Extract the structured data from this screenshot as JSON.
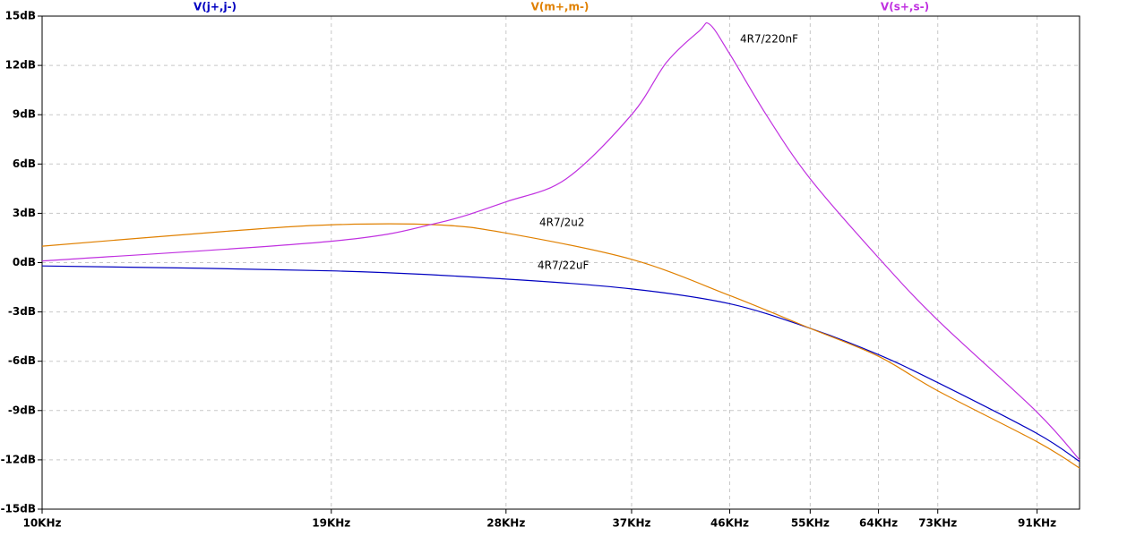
{
  "chart_data": {
    "type": "line",
    "x_log": true,
    "grid": true,
    "xlim": [
      10000,
      100000
    ],
    "ylim": [
      -15,
      15
    ],
    "xticks": [
      {
        "value": 10000,
        "label": "10KHz"
      },
      {
        "value": 19000,
        "label": "19KHz"
      },
      {
        "value": 28000,
        "label": "28KHz"
      },
      {
        "value": 37000,
        "label": "37KHz"
      },
      {
        "value": 46000,
        "label": "46KHz"
      },
      {
        "value": 55000,
        "label": "55KHz"
      },
      {
        "value": 64000,
        "label": "64KHz"
      },
      {
        "value": 73000,
        "label": "73KHz"
      },
      {
        "value": 91000,
        "label": "91KHz"
      }
    ],
    "yticks": [
      {
        "value": 15,
        "label": "15dB"
      },
      {
        "value": 12,
        "label": "12dB"
      },
      {
        "value": 9,
        "label": "9dB"
      },
      {
        "value": 6,
        "label": "6dB"
      },
      {
        "value": 3,
        "label": "3dB"
      },
      {
        "value": 0,
        "label": "0dB"
      },
      {
        "value": -3,
        "label": "-3dB"
      },
      {
        "value": -6,
        "label": "-6dB"
      },
      {
        "value": -9,
        "label": "-9dB"
      },
      {
        "value": -12,
        "label": "-12dB"
      },
      {
        "value": -15,
        "label": "-15dB"
      }
    ],
    "series": [
      {
        "name": "V(j+,j-)",
        "color": "#0000c0",
        "x": [
          10000,
          19000,
          28000,
          37000,
          46000,
          55000,
          64000,
          73000,
          91000,
          100000
        ],
        "values": [
          -0.2,
          -0.5,
          -1.0,
          -1.6,
          -2.5,
          -4.0,
          -5.6,
          -7.3,
          -10.4,
          -12.1
        ]
      },
      {
        "name": "V(m+,m-)",
        "color": "#e08000",
        "x": [
          10000,
          15000,
          19000,
          24000,
          28000,
          37000,
          46000,
          55000,
          64000,
          73000,
          91000,
          100000
        ],
        "values": [
          1.0,
          1.9,
          2.3,
          2.3,
          1.8,
          0.2,
          -2.0,
          -4.0,
          -5.7,
          -7.8,
          -10.9,
          -12.5
        ]
      },
      {
        "name": "V(s+,s-)",
        "color": "#c030e0",
        "x": [
          10000,
          19000,
          24000,
          28000,
          32000,
          37000,
          40000,
          43000,
          44000,
          46000,
          50000,
          55000,
          64000,
          73000,
          91000,
          100000
        ],
        "values": [
          0.1,
          1.3,
          2.4,
          3.7,
          5.1,
          9.0,
          12.2,
          14.1,
          14.5,
          12.7,
          8.9,
          5.1,
          0.3,
          -3.5,
          -9.1,
          -12.0
        ]
      }
    ],
    "annotations": [
      "4R7/22uF",
      "4R7/2u2",
      "4R7/220nF"
    ]
  }
}
